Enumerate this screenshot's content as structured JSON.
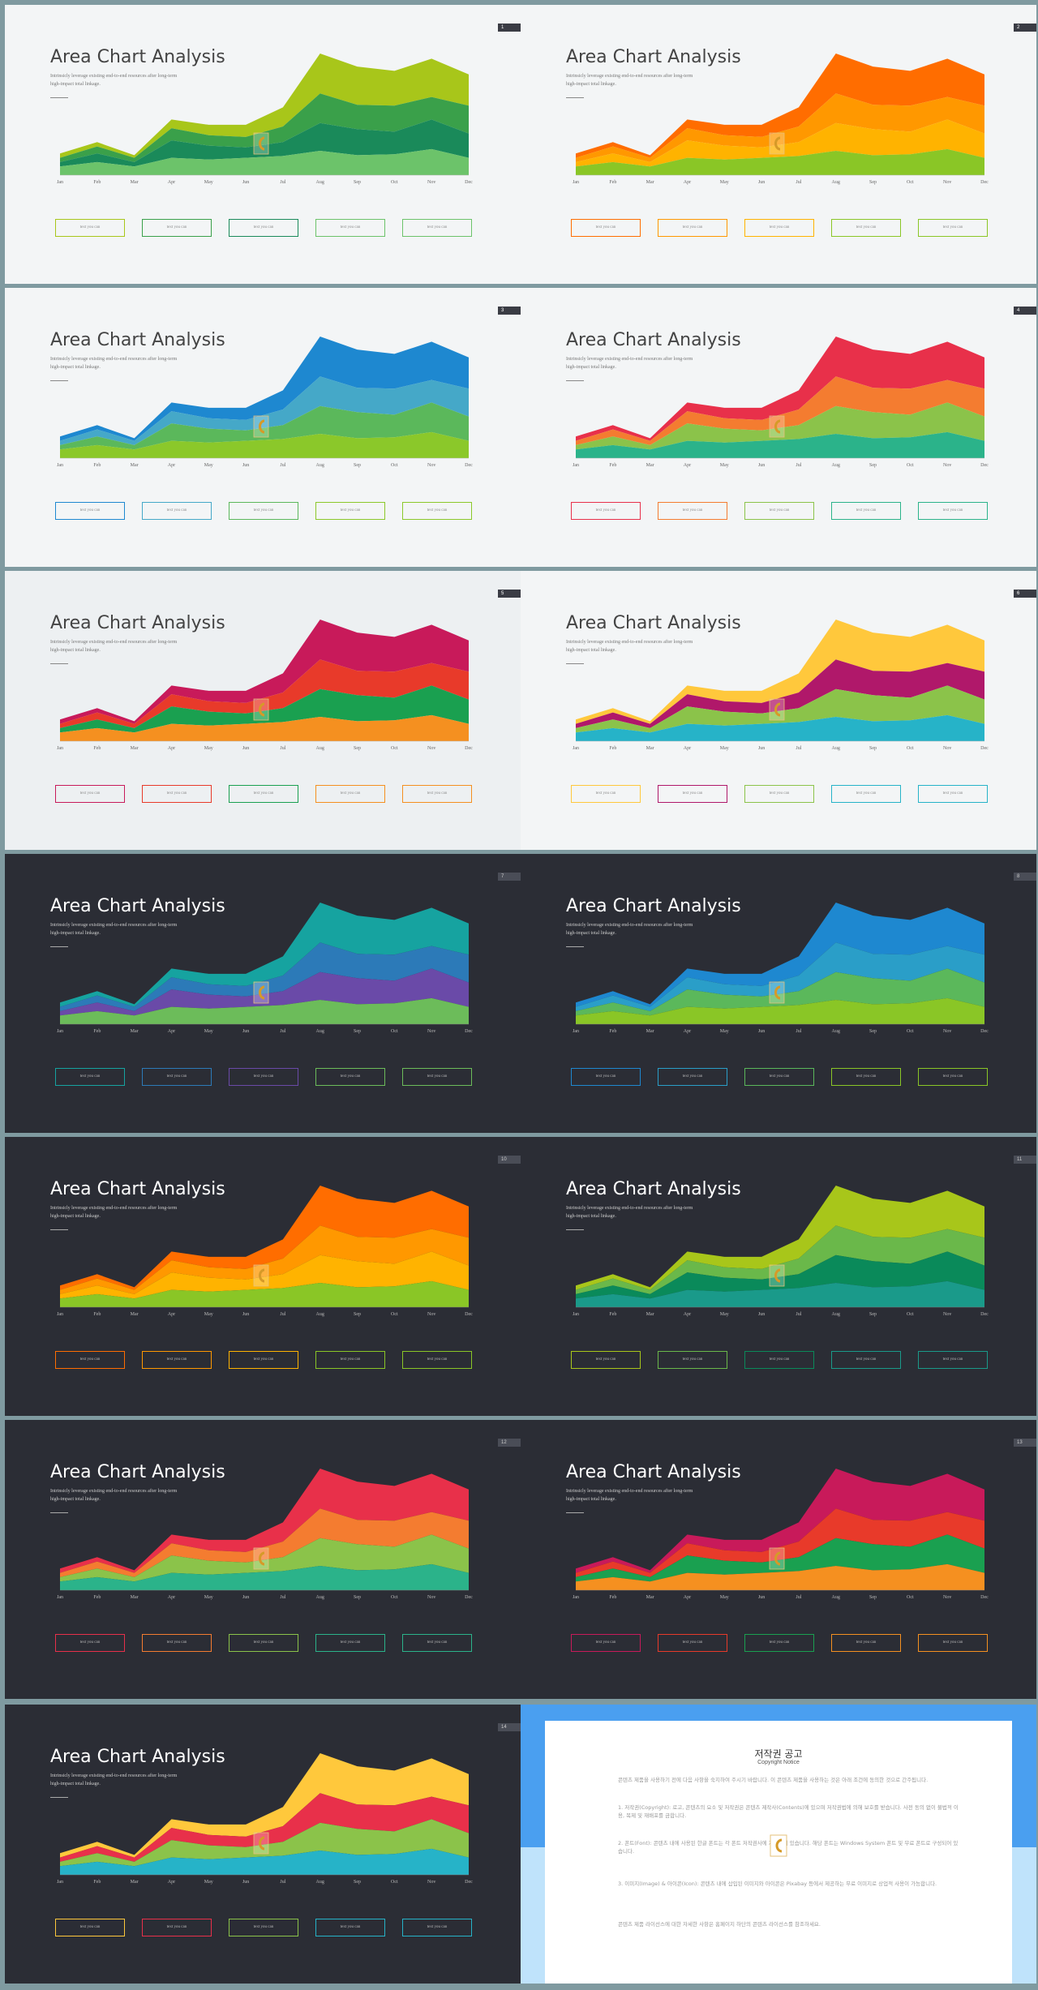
{
  "slide_title": "Area Chart Analysis",
  "subtitle_line1": "Intrinsicly leverage existing end-to-end resources after long-term",
  "subtitle_line2": "high-impact total linkage.",
  "box_label": "text you can",
  "months": [
    "Jan",
    "Feb",
    "Mar",
    "Apr",
    "May",
    "Jun",
    "Jul",
    "Aug",
    "Sep",
    "Oct",
    "Nov",
    "Dec"
  ],
  "chart_data": {
    "type": "area",
    "categories": [
      "Jan",
      "Feb",
      "Mar",
      "Apr",
      "May",
      "Jun",
      "Jul",
      "Aug",
      "Sep",
      "Oct",
      "Nov",
      "Dec"
    ],
    "series": [
      {
        "values": [
          1.0,
          1.5,
          1.0,
          2.0,
          1.8,
          2.0,
          2.2,
          2.8,
          2.3,
          2.4,
          3.0,
          2.0
        ]
      },
      {
        "values": [
          0.5,
          1.0,
          0.5,
          2.0,
          1.6,
          1.2,
          1.6,
          3.2,
          3.0,
          2.6,
          3.4,
          2.8
        ]
      },
      {
        "values": [
          0.5,
          0.8,
          0.5,
          1.4,
          1.2,
          1.2,
          1.8,
          3.4,
          2.8,
          3.0,
          2.6,
          3.2
        ]
      },
      {
        "values": [
          0.5,
          0.5,
          0.3,
          1.0,
          1.2,
          1.4,
          2.2,
          4.6,
          4.4,
          4.0,
          4.4,
          3.6
        ]
      }
    ],
    "ylim": [
      0,
      14
    ]
  },
  "slides": [
    {
      "page": "1",
      "theme": "light",
      "colors": [
        "#6cc36a",
        "#1a8a5a",
        "#3aa04a",
        "#a8c61a"
      ]
    },
    {
      "page": "2",
      "theme": "light",
      "colors": [
        "#8ac626",
        "#ffb300",
        "#ff9800",
        "#ff6d00"
      ]
    },
    {
      "page": "3",
      "theme": "light",
      "colors": [
        "#8bc82a",
        "#5bb85b",
        "#45a8c8",
        "#1e88d0"
      ]
    },
    {
      "page": "4",
      "theme": "light",
      "colors": [
        "#2bb38a",
        "#8bc34a",
        "#f47c30",
        "#e8304a"
      ]
    },
    {
      "page": "5",
      "theme": "grey",
      "colors": [
        "#f59020",
        "#1aa050",
        "#e83a2a",
        "#c81a5a"
      ]
    },
    {
      "page": "6",
      "theme": "light",
      "colors": [
        "#26b3c8",
        "#8bc34a",
        "#b0186a",
        "#ffc83c"
      ]
    },
    {
      "page": "7",
      "theme": "dark",
      "colors": [
        "#6cbc5a",
        "#6a4aa8",
        "#2c7ab8",
        "#16a3a0"
      ]
    },
    {
      "page": "8",
      "theme": "dark",
      "colors": [
        "#8ac626",
        "#5bb85b",
        "#2a9ec8",
        "#1e88d0"
      ]
    },
    {
      "page": "10",
      "theme": "dark",
      "colors": [
        "#8ac626",
        "#ffb300",
        "#ff9800",
        "#ff6d00"
      ]
    },
    {
      "page": "11",
      "theme": "dark",
      "colors": [
        "#1a9a8a",
        "#0a8a5a",
        "#6ab84a",
        "#a8c61a"
      ]
    },
    {
      "page": "12",
      "theme": "dark",
      "colors": [
        "#2bb38a",
        "#8bc34a",
        "#f47c30",
        "#e8304a"
      ]
    },
    {
      "page": "13",
      "theme": "dark",
      "colors": [
        "#f59020",
        "#1aa050",
        "#e83a2a",
        "#c81a5a"
      ]
    },
    {
      "page": "14",
      "theme": "dark",
      "colors": [
        "#26b3c8",
        "#8bc34a",
        "#e8304a",
        "#ffc83c"
      ]
    }
  ],
  "copyright": {
    "title": "저작권 공고",
    "subtitle": "Copyright Notice",
    "intro": "콘텐츠 제품을 사용하기 전에 다음 사항을 숙지하여 주시기 바랍니다. 이 콘텐츠 제품을 사용하는 것은 아래 조건에 동의한 것으로 간주됩니다.",
    "p1": "1. 저작권(Copyright): 로고, 콘텐츠의 요소 및 저작권은 콘텐츠 제작사(Contents)에 있으며 저작권법에 의해 보호를 받습니다. 사전 동의 없이 불법적 이용, 복제 및 재배포를 금합니다.",
    "p2": "2. 폰트(Font): 콘텐츠 내에 사용된 한글 폰트는 각 폰트 저작권사에 저작권이 있습니다. 해당 폰트는 Windows System 폰트 및 무료 폰트로 구성되어 있습니다.",
    "p3": "3. 이미지(Image) & 아이콘(Icon): 콘텐츠 내에 삽입된 이미지와 아이콘은 Pixabay 등에서 제공하는 무료 이미지로 상업적 사용이 가능합니다.",
    "outro": "콘텐츠 제품 라이선스에 대한 자세한 사항은 홈페이지 하단의 콘텐츠 라이선스를 참조하세요."
  }
}
